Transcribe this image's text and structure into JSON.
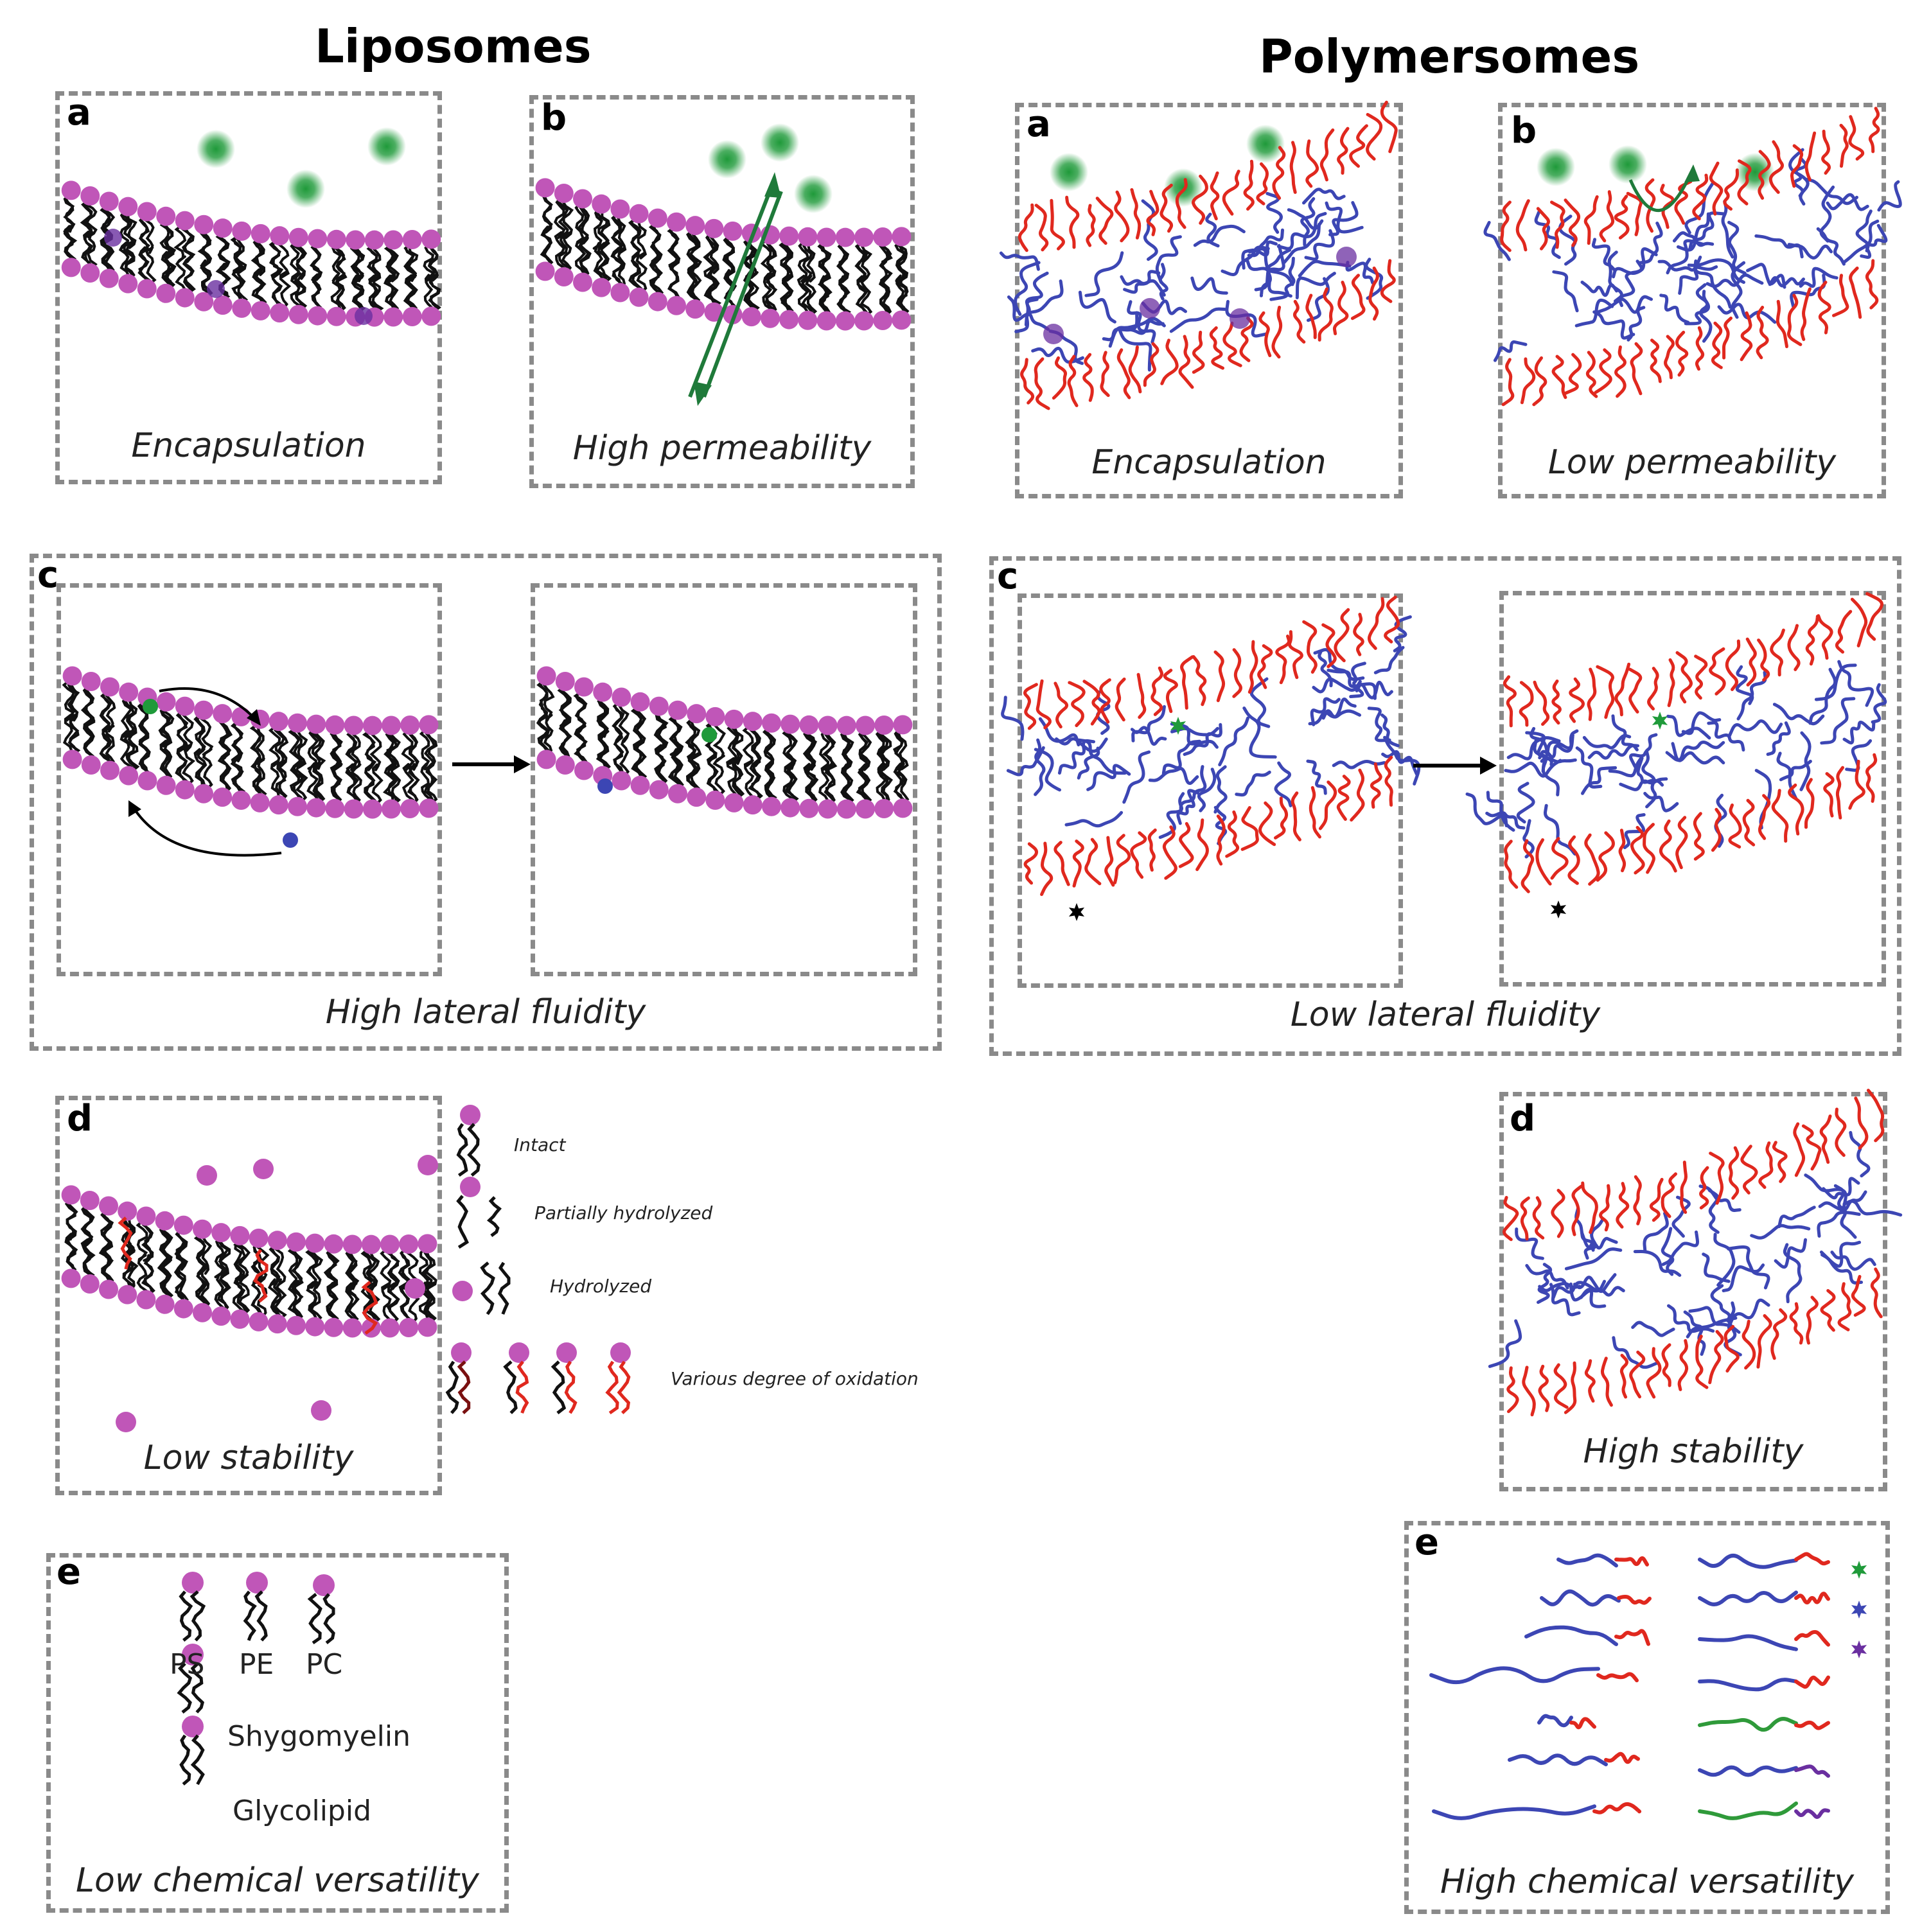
{
  "titles": {
    "liposomes": "Liposomes",
    "polymersomes": "Polymersomes"
  },
  "liposomes": {
    "a": {
      "letter": "a",
      "caption": "Encapsulation"
    },
    "b": {
      "letter": "b",
      "caption": "High permeability"
    },
    "c": {
      "letter": "c",
      "caption": "High lateral fluidity"
    },
    "d": {
      "letter": "d",
      "caption": "Low stability",
      "legend": [
        "Intact",
        "Partially hydrolyzed",
        "Hydrolyzed",
        "Various degree of oxidation"
      ]
    },
    "e": {
      "letter": "e",
      "caption": "Low chemical versatility",
      "lipids": [
        "PS",
        "PE",
        "PC",
        "Shygomyelin",
        "Glycolipid"
      ]
    }
  },
  "polymersomes": {
    "a": {
      "letter": "a",
      "caption": "Encapsulation"
    },
    "b": {
      "letter": "b",
      "caption": "Low permeability"
    },
    "c": {
      "letter": "c",
      "caption": "Low lateral fluidity"
    },
    "d": {
      "letter": "d",
      "caption": "High stability"
    },
    "e": {
      "letter": "e",
      "caption": "High chemical versatility"
    }
  },
  "colors": {
    "headgroup": "#c056b8",
    "tail": "#111111",
    "hydrophobic_block": "#3c46b4",
    "hydrophilic_block": "#e0281e",
    "cargo": "#1f9a3a",
    "purple_marker": "#6a2fa0",
    "box_border": "#8a8a8a",
    "arrow": "#1f7a3a"
  }
}
